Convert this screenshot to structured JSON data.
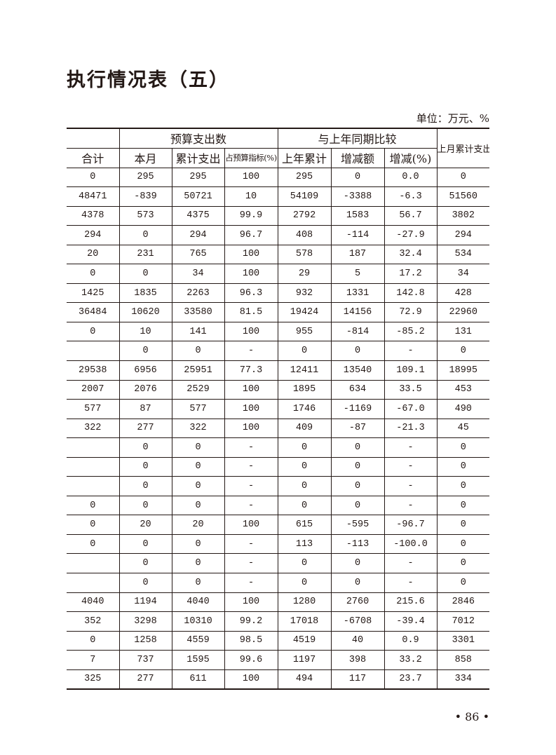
{
  "title": "执行情况表（五）",
  "unit": "单位：万元、%",
  "header": {
    "group_budget": "预算支出数",
    "group_compare": "与上年同期比较",
    "last_month_cumulative": "上月累计支出",
    "columns": [
      "合计",
      "本月",
      "累计支出",
      "占预算指标(%)",
      "上年累计",
      "增减额",
      "增减(%)"
    ]
  },
  "rows": [
    [
      "0",
      "295",
      "295",
      "100",
      "295",
      "0",
      "0.0",
      "0"
    ],
    [
      "48471",
      "-839",
      "50721",
      "10",
      "54109",
      "-3388",
      "-6.3",
      "51560"
    ],
    [
      "4378",
      "573",
      "4375",
      "99.9",
      "2792",
      "1583",
      "56.7",
      "3802"
    ],
    [
      "294",
      "0",
      "294",
      "96.7",
      "408",
      "-114",
      "-27.9",
      "294"
    ],
    [
      "20",
      "231",
      "765",
      "100",
      "578",
      "187",
      "32.4",
      "534"
    ],
    [
      "0",
      "0",
      "34",
      "100",
      "29",
      "5",
      "17.2",
      "34"
    ],
    [
      "1425",
      "1835",
      "2263",
      "96.3",
      "932",
      "1331",
      "142.8",
      "428"
    ],
    [
      "36484",
      "10620",
      "33580",
      "81.5",
      "19424",
      "14156",
      "72.9",
      "22960"
    ],
    [
      "0",
      "10",
      "141",
      "100",
      "955",
      "-814",
      "-85.2",
      "131"
    ],
    [
      "",
      "0",
      "0",
      "-",
      "0",
      "0",
      "-",
      "0"
    ],
    [
      "29538",
      "6956",
      "25951",
      "77.3",
      "12411",
      "13540",
      "109.1",
      "18995"
    ],
    [
      "2007",
      "2076",
      "2529",
      "100",
      "1895",
      "634",
      "33.5",
      "453"
    ],
    [
      "577",
      "87",
      "577",
      "100",
      "1746",
      "-1169",
      "-67.0",
      "490"
    ],
    [
      "322",
      "277",
      "322",
      "100",
      "409",
      "-87",
      "-21.3",
      "45"
    ],
    [
      "",
      "0",
      "0",
      "-",
      "0",
      "0",
      "-",
      "0"
    ],
    [
      "",
      "0",
      "0",
      "-",
      "0",
      "0",
      "-",
      "0"
    ],
    [
      "",
      "0",
      "0",
      "-",
      "0",
      "0",
      "-",
      "0"
    ],
    [
      "0",
      "0",
      "0",
      "-",
      "0",
      "0",
      "-",
      "0"
    ],
    [
      "0",
      "20",
      "20",
      "100",
      "615",
      "-595",
      "-96.7",
      "0"
    ],
    [
      "0",
      "0",
      "0",
      "-",
      "113",
      "-113",
      "-100.0",
      "0"
    ],
    [
      "",
      "0",
      "0",
      "-",
      "0",
      "0",
      "-",
      "0"
    ],
    [
      "",
      "0",
      "0",
      "-",
      "0",
      "0",
      "-",
      "0"
    ],
    [
      "4040",
      "1194",
      "4040",
      "100",
      "1280",
      "2760",
      "215.6",
      "2846"
    ],
    [
      "352",
      "3298",
      "10310",
      "99.2",
      "17018",
      "-6708",
      "-39.4",
      "7012"
    ],
    [
      "0",
      "1258",
      "4559",
      "98.5",
      "4519",
      "40",
      "0.9",
      "3301"
    ],
    [
      "7",
      "737",
      "1595",
      "99.6",
      "1197",
      "398",
      "33.2",
      "858"
    ],
    [
      "325",
      "277",
      "611",
      "100",
      "494",
      "117",
      "23.7",
      "334"
    ]
  ],
  "page_number": "• 86 •"
}
